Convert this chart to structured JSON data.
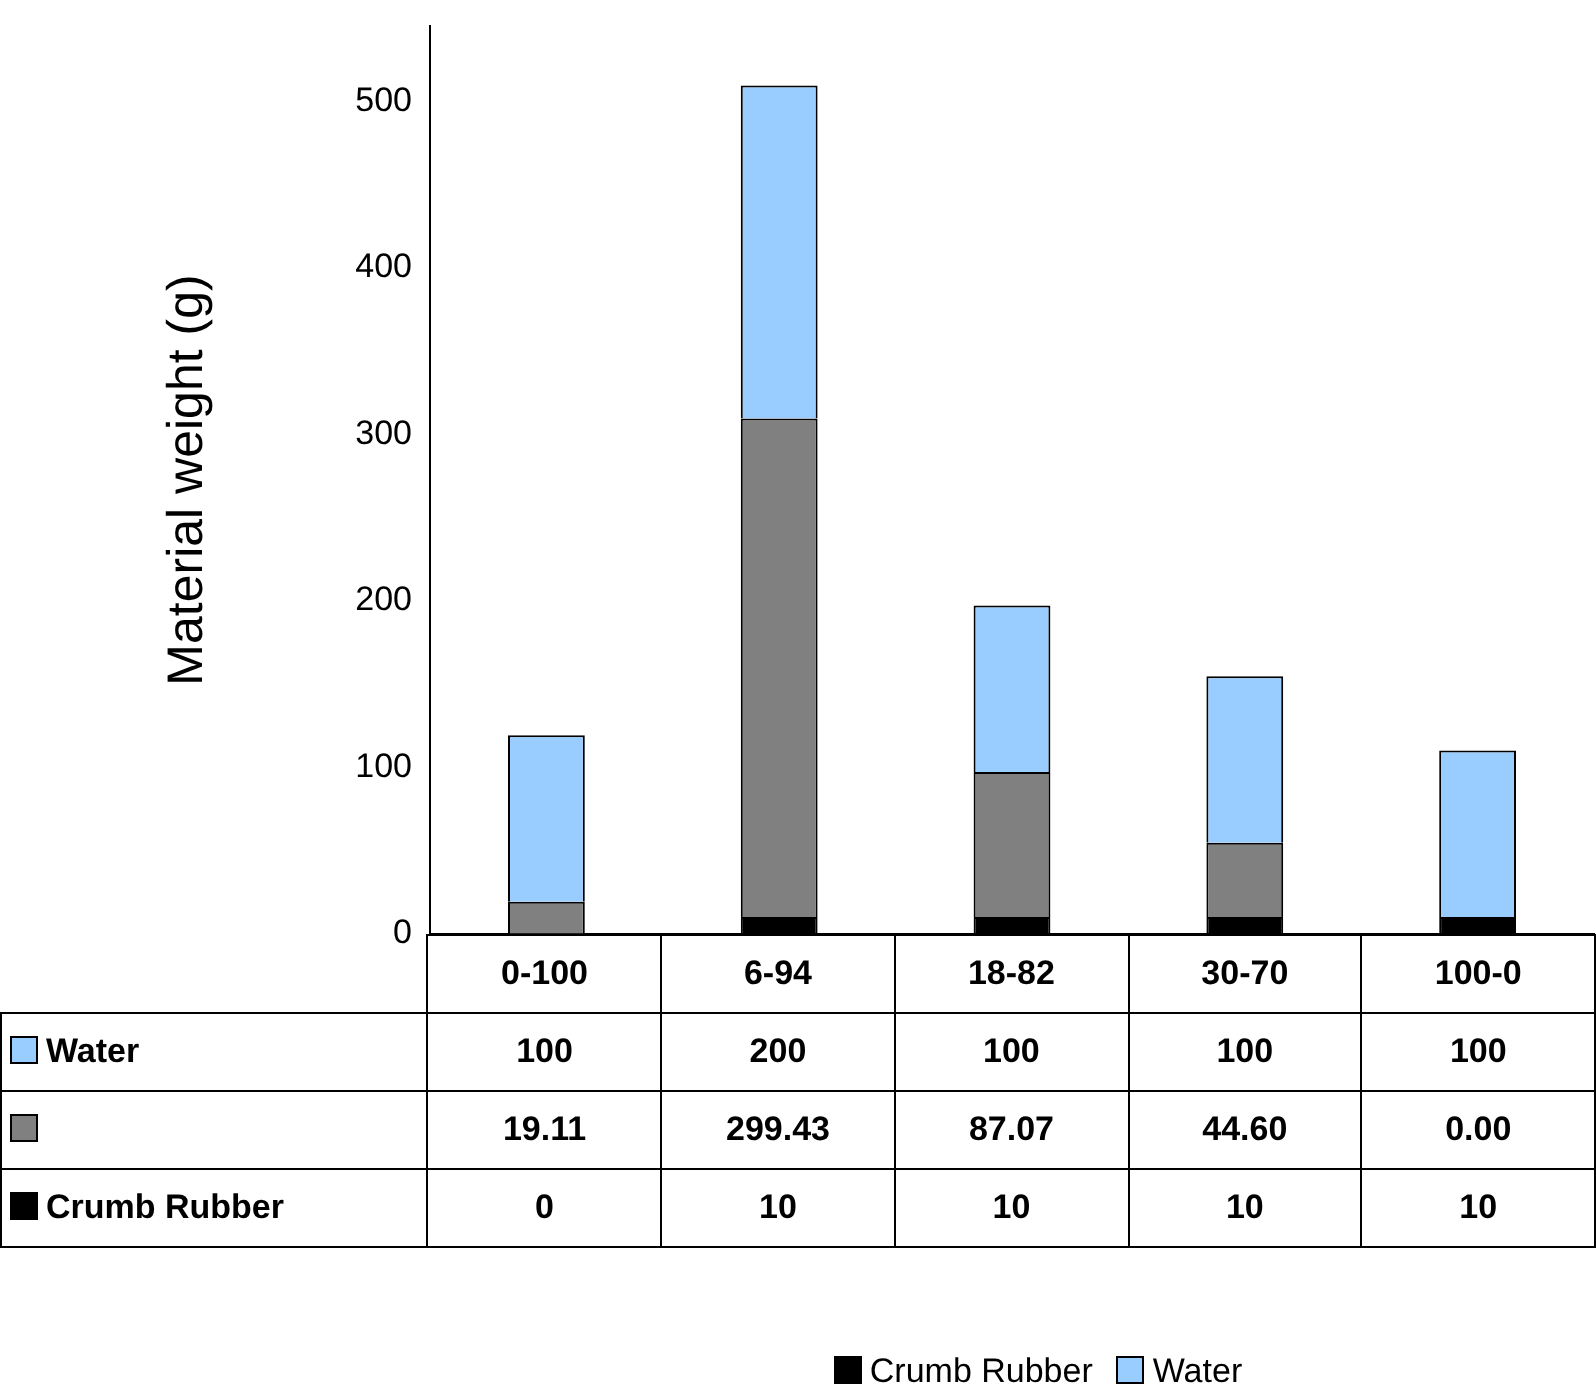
{
  "chart_data": {
    "type": "bar",
    "ylabel": "Material weight (g)",
    "categories": [
      "0-100",
      "6-94",
      "18-82",
      "30-70",
      "100-0"
    ],
    "stacked": true,
    "series": [
      {
        "name": "Crumb Rubber",
        "color": "#000000",
        "values": [
          0,
          10,
          10,
          10,
          10
        ],
        "value_labels": [
          "0",
          "10",
          "10",
          "10",
          "10"
        ]
      },
      {
        "color": "#808080",
        "values": [
          19.11,
          299.43,
          87.07,
          44.6,
          0
        ],
        "value_labels": [
          "19.11",
          "299.43",
          "87.07",
          "44.60",
          "0.00"
        ]
      },
      {
        "name": "Water",
        "color": "#99ccff",
        "values": [
          100,
          200,
          100,
          100,
          100
        ],
        "value_labels": [
          "100",
          "200",
          "100",
          "100",
          "100"
        ]
      }
    ],
    "ylim": [
      0,
      545
    ],
    "yticks": [
      0,
      100,
      200,
      300,
      400,
      500
    ],
    "grid": false,
    "legend": "bottom"
  }
}
